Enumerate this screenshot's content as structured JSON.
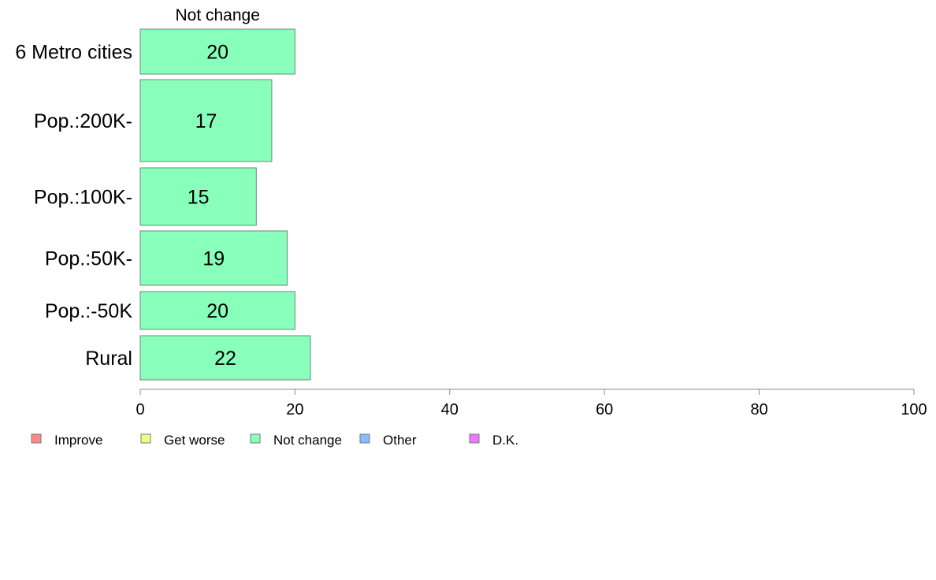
{
  "chart_data": {
    "type": "bar",
    "orientation": "horizontal",
    "stacked": true,
    "categories": [
      "6 Metro cities",
      "Pop.:200K-",
      "Pop.:100K-",
      "Pop.:50K-",
      "Pop.:-50K",
      "Rural"
    ],
    "series": [
      {
        "name": "Not change",
        "values": [
          20,
          17,
          15,
          19,
          20,
          22
        ],
        "color": "#88ffbb"
      }
    ],
    "series_header": "Not change",
    "xlim": [
      0,
      100
    ],
    "xticks": [
      0,
      20,
      40,
      60,
      80,
      100
    ],
    "grid": false,
    "legend": {
      "placement": "bottom-left",
      "entries": [
        {
          "label": "Improve",
          "color": "#ff8888"
        },
        {
          "label": "Get worse",
          "color": "#eeff88"
        },
        {
          "label": "Not change",
          "color": "#88ffbb"
        },
        {
          "label": "Other",
          "color": "#88bbff"
        },
        {
          "label": "D.K.",
          "color": "#ee77ff"
        }
      ]
    }
  }
}
